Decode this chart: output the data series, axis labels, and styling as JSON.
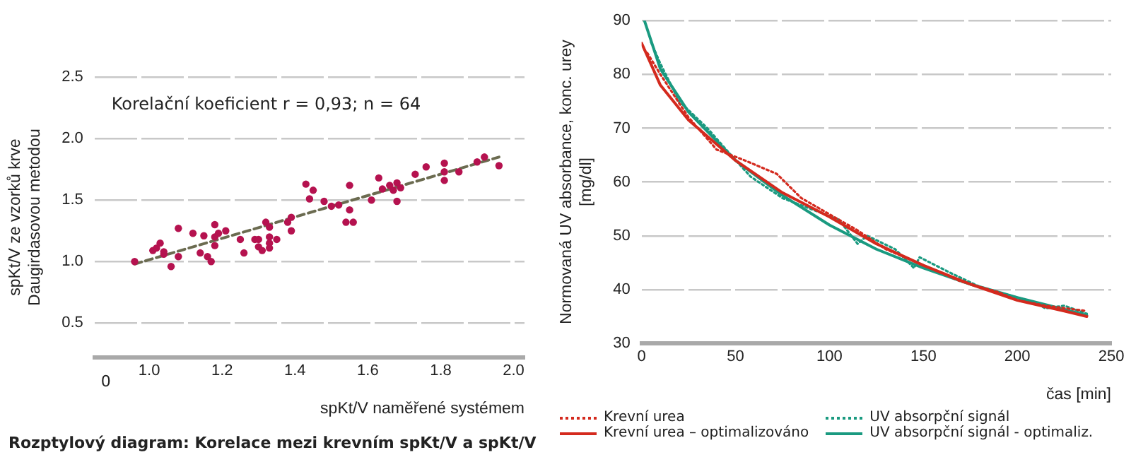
{
  "chart_data": [
    {
      "type": "scatter",
      "ylabel": [
        "spKt/V ze vzorků krve",
        "Daugirdasovou metodou"
      ],
      "xlabel": "spKt/V naměřené systémem",
      "annotations": [
        "Korelační koeficient r = 0,93; n = 64",
        "Rozptylový diagram: Korelace mezi krevním spKt/V a spKt/V",
        "0"
      ],
      "xlim": [
        0.85,
        2.03
      ],
      "xticks": [
        {
          "value": 1.0,
          "label": "1.0"
        },
        {
          "value": 1.2,
          "label": "1.2"
        },
        {
          "value": 1.4,
          "label": "1.4"
        },
        {
          "value": 1.6,
          "label": "1.6"
        },
        {
          "value": 1.8,
          "label": "1.8"
        },
        {
          "value": 2.0,
          "label": "2.0"
        }
      ],
      "ylim": [
        0.22,
        2.5
      ],
      "yticks": [
        {
          "value": 0.5,
          "label": "0.5"
        },
        {
          "value": 1.0,
          "label": "1.0"
        },
        {
          "value": 1.5,
          "label": "1.5"
        },
        {
          "value": 2.0,
          "label": "2.0"
        },
        {
          "value": 2.5,
          "label": "2.5"
        }
      ],
      "grid": "y",
      "series": [
        {
          "color": "#b5124f",
          "marker": "circle",
          "x": [
            0.96,
            1.01,
            1.02,
            1.03,
            1.04,
            1.04,
            1.06,
            1.08,
            1.08,
            1.12,
            1.14,
            1.15,
            1.16,
            1.17,
            1.18,
            1.18,
            1.18,
            1.19,
            1.21,
            1.25,
            1.26,
            1.29,
            1.3,
            1.3,
            1.31,
            1.32,
            1.33,
            1.33,
            1.33,
            1.33,
            1.35,
            1.38,
            1.39,
            1.39,
            1.43,
            1.44,
            1.45,
            1.48,
            1.5,
            1.52,
            1.54,
            1.55,
            1.55,
            1.56,
            1.61,
            1.63,
            1.64,
            1.66,
            1.67,
            1.68,
            1.68,
            1.69,
            1.73,
            1.76,
            1.81,
            1.81,
            1.81,
            1.85,
            1.9,
            1.92,
            1.96
          ],
          "values": [
            1.0,
            1.09,
            1.11,
            1.15,
            1.06,
            1.08,
            0.96,
            1.27,
            1.04,
            1.23,
            1.07,
            1.21,
            1.04,
            1.0,
            1.3,
            1.2,
            1.13,
            1.23,
            1.25,
            1.18,
            1.07,
            1.18,
            1.18,
            1.12,
            1.09,
            1.32,
            1.28,
            1.2,
            1.15,
            1.11,
            1.18,
            1.32,
            1.36,
            1.25,
            1.63,
            1.51,
            1.58,
            1.49,
            1.45,
            1.46,
            1.32,
            1.62,
            1.42,
            1.32,
            1.5,
            1.68,
            1.59,
            1.62,
            1.58,
            1.64,
            1.49,
            1.6,
            1.71,
            1.77,
            1.8,
            1.73,
            1.66,
            1.73,
            1.81,
            1.85,
            1.78
          ]
        },
        {
          "type": "line",
          "color": "#6b6b50",
          "line_style": "dashed",
          "x": [
            0.96,
            1.96
          ],
          "values": [
            0.98,
            1.85
          ]
        }
      ]
    },
    {
      "type": "line",
      "ylabel": [
        "Normovaná UV absorbance, konc. urey",
        "[mg/dl]"
      ],
      "xlabel": "čas [min]",
      "xlim": [
        0,
        250
      ],
      "xticks": [
        0,
        50,
        100,
        150,
        200,
        250
      ],
      "ylim": [
        30,
        90
      ],
      "yticks": [
        30,
        40,
        50,
        60,
        70,
        80,
        90
      ],
      "grid": "y",
      "legend": "bottom",
      "series": [
        {
          "name": "Krevní urea",
          "color": "#d42a1e",
          "line_style": "dotted",
          "x": [
            3,
            10,
            25,
            40,
            55,
            72,
            85,
            100,
            115,
            130,
            150,
            170,
            190,
            200,
            215,
            237
          ],
          "values": [
            84,
            80,
            72,
            66,
            64,
            61.5,
            57,
            54,
            51,
            47.5,
            44.5,
            41.5,
            39.5,
            38,
            37,
            36
          ]
        },
        {
          "name": "Krevní urea – optimalizováno",
          "color": "#d42a1e",
          "line_style": "solid",
          "x": [
            0,
            10,
            25,
            50,
            75,
            100,
            125,
            150,
            175,
            200,
            225,
            237
          ],
          "values": [
            85.8,
            78,
            71.5,
            64,
            58,
            53.5,
            48.5,
            44.5,
            41,
            38,
            36,
            35
          ]
        },
        {
          "name": "UV absorpční signál",
          "color": "#1a9a80",
          "line_style": "dotted",
          "x": [
            5,
            10,
            20,
            35,
            45,
            58,
            75,
            90,
            105,
            115,
            120,
            135,
            145,
            148,
            165,
            180,
            195,
            210,
            215,
            225,
            237
          ],
          "values": [
            86,
            82,
            75,
            70,
            66,
            61,
            57,
            55,
            53,
            48.5,
            50,
            47.5,
            44,
            46,
            43,
            40.5,
            39,
            37.5,
            36.5,
            37,
            35.5
          ]
        },
        {
          "name": "UV absorpční signál - optimaliz.",
          "color": "#1a9a80",
          "line_style": "solid",
          "x": [
            1.5,
            10,
            25,
            50,
            75,
            100,
            125,
            150,
            175,
            200,
            225,
            237
          ],
          "values": [
            90,
            81,
            73,
            64,
            57.5,
            52,
            47.5,
            44,
            41,
            38.5,
            36.3,
            35.2
          ]
        }
      ]
    }
  ]
}
